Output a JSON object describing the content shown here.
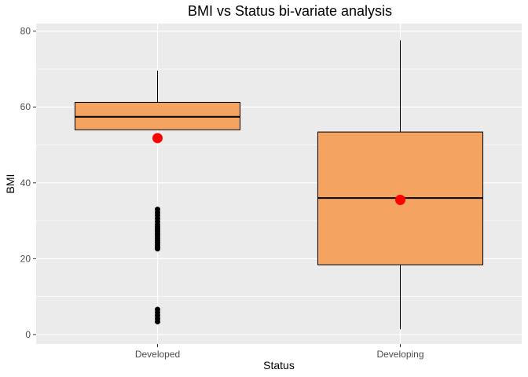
{
  "chart_data": {
    "type": "boxplot",
    "title": "BMI vs Status bi-variate analysis",
    "xlabel": "Status",
    "ylabel": "BMI",
    "categories": [
      "Developed",
      "Developing"
    ],
    "ylim": [
      -2.5,
      82
    ],
    "yticks": [
      0,
      20,
      40,
      60,
      80
    ],
    "grid": true,
    "legend": "none",
    "colors": {
      "panel_bg": "#ebebeb",
      "grid": "#ffffff",
      "box_fill": "#f4a460",
      "box_stroke": "#000000",
      "mean_marker": "#ff0000",
      "outlier": "#000000"
    },
    "boxes": [
      {
        "category": "Developed",
        "whisker_low": 54.0,
        "q1": 54.0,
        "median": 57.4,
        "q3": 61.2,
        "whisker_high": 69.6,
        "mean": 51.8,
        "outliers": [
          33.0,
          32.2,
          31.4,
          30.6,
          29.8,
          29.0,
          28.4,
          27.8,
          27.2,
          26.6,
          26.0,
          25.4,
          24.8,
          24.2,
          23.6,
          23.0,
          22.6,
          6.6,
          5.8,
          5.0,
          4.2,
          3.4
        ]
      },
      {
        "category": "Developing",
        "whisker_low": 1.4,
        "q1": 18.4,
        "median": 36.0,
        "q3": 53.4,
        "whisker_high": 77.6,
        "mean": 35.5,
        "outliers": []
      }
    ]
  }
}
